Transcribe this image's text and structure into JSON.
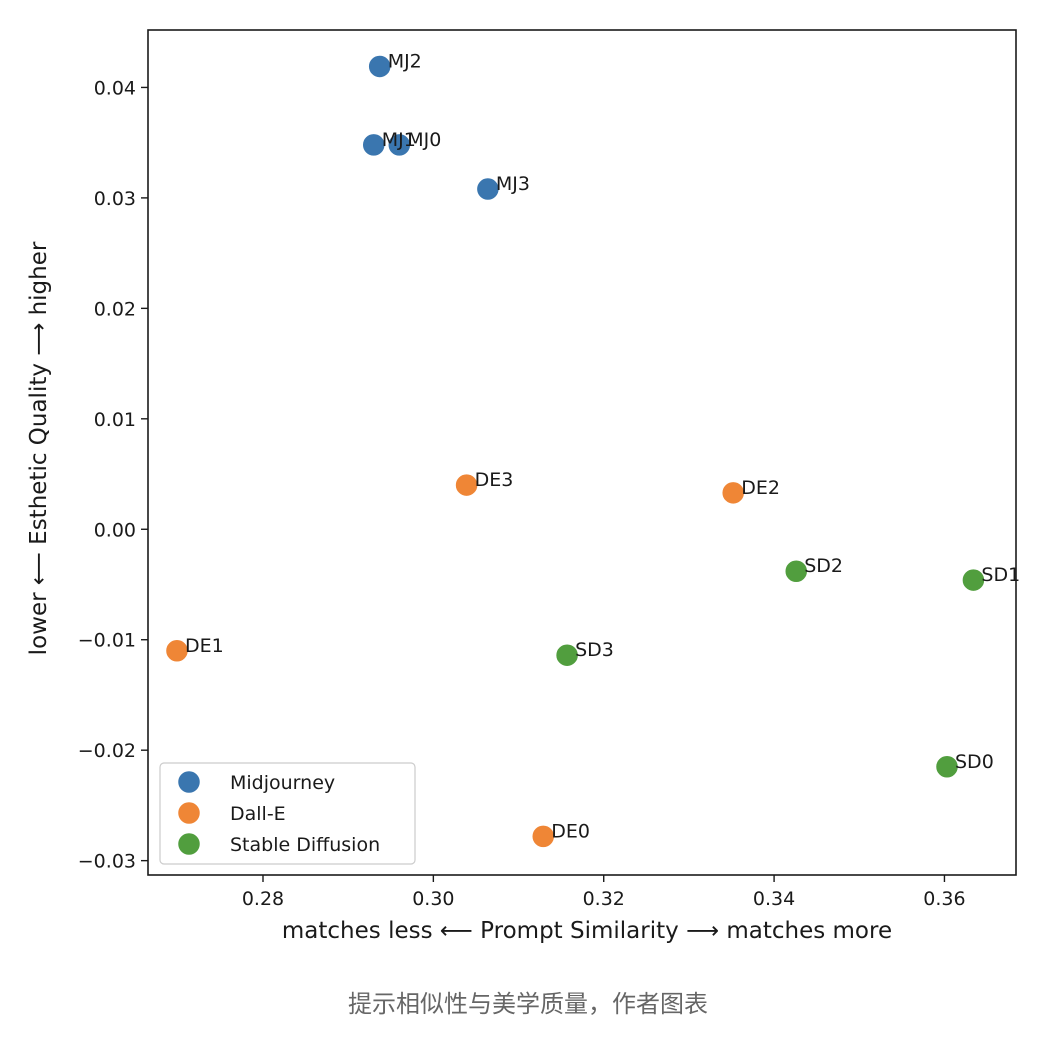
{
  "chart_data": {
    "type": "scatter",
    "xlabel": "matches less ⟵  Prompt Similarity  ⟶ matches more",
    "ylabel": "lower ⟵  Esthetic Quality  ⟶ higher",
    "xlim": [
      0.2665,
      0.3684
    ],
    "ylim": [
      -0.0313,
      0.0452
    ],
    "xticks": [
      0.28,
      0.3,
      0.32,
      0.34,
      0.36
    ],
    "xtick_labels": [
      "0.28",
      "0.30",
      "0.32",
      "0.34",
      "0.36"
    ],
    "yticks": [
      -0.03,
      -0.02,
      -0.01,
      0.0,
      0.01,
      0.02,
      0.03,
      0.04
    ],
    "ytick_labels": [
      "−0.03",
      "−0.02",
      "−0.01",
      "0.00",
      "0.01",
      "0.02",
      "0.03",
      "0.04"
    ],
    "grid": false,
    "legend_position": "lower-left",
    "series": [
      {
        "name": "Midjourney",
        "color": "#3a76af",
        "points": [
          {
            "label": "MJ0",
            "x": 0.296,
            "y": 0.0348
          },
          {
            "label": "MJ1",
            "x": 0.293,
            "y": 0.0348
          },
          {
            "label": "MJ2",
            "x": 0.2937,
            "y": 0.0419
          },
          {
            "label": "MJ3",
            "x": 0.3064,
            "y": 0.0308
          }
        ]
      },
      {
        "name": "Dall-E",
        "color": "#ef8636",
        "points": [
          {
            "label": "DE0",
            "x": 0.3129,
            "y": -0.0278
          },
          {
            "label": "DE1",
            "x": 0.2699,
            "y": -0.011
          },
          {
            "label": "DE2",
            "x": 0.3352,
            "y": 0.0033
          },
          {
            "label": "DE3",
            "x": 0.3039,
            "y": 0.004
          }
        ]
      },
      {
        "name": "Stable Diffusion",
        "color": "#519e3e",
        "points": [
          {
            "label": "SD0",
            "x": 0.3603,
            "y": -0.0215
          },
          {
            "label": "SD1",
            "x": 0.3634,
            "y": -0.0046
          },
          {
            "label": "SD2",
            "x": 0.3426,
            "y": -0.0038
          },
          {
            "label": "SD3",
            "x": 0.3157,
            "y": -0.0114
          }
        ]
      }
    ]
  },
  "caption": "提示相似性与美学质量，作者图表"
}
